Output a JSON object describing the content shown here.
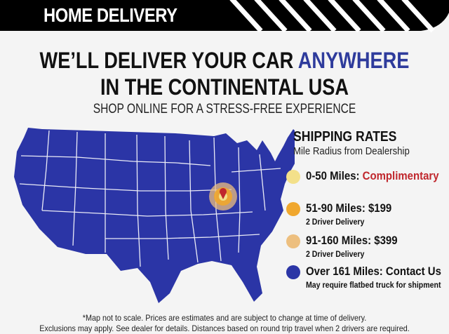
{
  "header": {
    "title": "HOME DELIVERY"
  },
  "headline": {
    "line1_a": "WE’LL DELIVER YOUR CAR ",
    "line1_b": "ANYWHERE",
    "line2": "IN THE CONTINENTAL USA",
    "subtitle": "SHOP ONLINE FOR A STRESS-FREE EXPERIENCE"
  },
  "legend": {
    "title": "SHIPPING RATES",
    "subtitle": "Mile Radius from Dealership",
    "items": [
      {
        "label": "0-50 Miles: ",
        "value": "Complimentary",
        "note": "",
        "color": "#f3e08a"
      },
      {
        "label": "51-90 Miles: $199",
        "note": "2 Driver Delivery",
        "color": "#f0a72e"
      },
      {
        "label": "91-160 Miles: $399",
        "note": "2 Driver Delivery",
        "color": "#edbf7f"
      },
      {
        "label": "Over 161 Miles: Contact Us",
        "note": "May require flatbed truck for shipment",
        "color": "#2b35a6"
      }
    ]
  },
  "colors": {
    "map": "#2b35a6",
    "accent": "#2e3b9c",
    "complimentary": "#c0272d"
  },
  "footer": {
    "line1": "*Map not to scale. Prices are estimates and are subject to change at time of delivery.",
    "line2": "Exclusions may apply. See dealer for details. Distances based on round trip travel when 2 drivers are required."
  }
}
